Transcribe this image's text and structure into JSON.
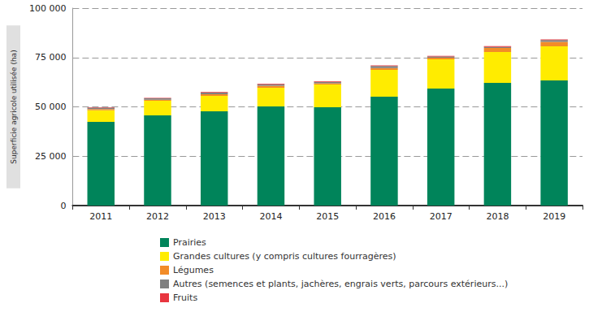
{
  "chart_data": {
    "type": "bar",
    "stacked": true,
    "y_label": "Superficie agricole utilisée (ha)",
    "categories": [
      "2011",
      "2012",
      "2013",
      "2014",
      "2015",
      "2016",
      "2017",
      "2018",
      "2019"
    ],
    "series": [
      {
        "name": "Prairies",
        "color": "#00845a",
        "values": [
          42400,
          45700,
          47700,
          50200,
          49800,
          55100,
          59300,
          62100,
          63400
        ]
      },
      {
        "name": "Grandes cultures (y compris cultures fourragères)",
        "color": "#ffec00",
        "values": [
          5800,
          7400,
          7900,
          9500,
          11500,
          13600,
          14800,
          15700,
          17300
        ]
      },
      {
        "name": "Légumes",
        "color": "#f28c28",
        "values": [
          700,
          500,
          800,
          1000,
          600,
          1000,
          800,
          2000,
          2200
        ]
      },
      {
        "name": "Autres (semences et plants, jachères, engrais verts, parcours extérieurs...)",
        "color": "#808080",
        "values": [
          700,
          700,
          800,
          700,
          800,
          1000,
          600,
          600,
          900
        ]
      },
      {
        "name": "Fruits",
        "color": "#e8353f",
        "values": [
          200,
          200,
          300,
          300,
          300,
          300,
          300,
          400,
          400
        ]
      }
    ],
    "ylim": [
      0,
      100000
    ],
    "yticks": [
      0,
      {
        "value": 25000,
        "label": "25 000"
      },
      {
        "value": 50000,
        "label": "50 000"
      },
      {
        "value": 75000,
        "label": "75 000"
      },
      {
        "value": 100000,
        "label": "100 000"
      }
    ],
    "grid": true,
    "legend": "bottom"
  }
}
